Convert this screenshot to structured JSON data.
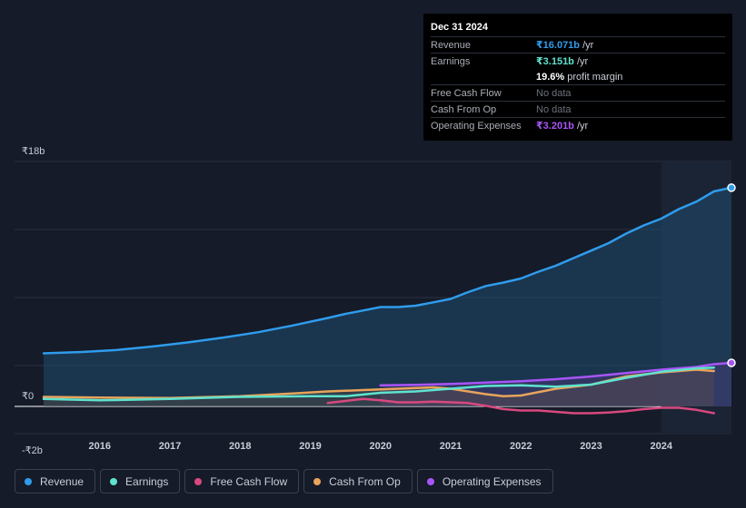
{
  "tooltip": {
    "date": "Dec 31 2024",
    "rows": [
      {
        "label": "Revenue",
        "value": "₹16.071b",
        "unit": " /yr",
        "color": "#2f9cec"
      },
      {
        "label": "Earnings",
        "value": "₹3.151b",
        "unit": " /yr",
        "color": "#5fe3cf"
      },
      {
        "label": "",
        "value": "19.6%",
        "unit": " profit margin",
        "color": "#ffffff"
      },
      {
        "label": "Free Cash Flow",
        "value": "No data",
        "unit": "",
        "color": "#6b717c"
      },
      {
        "label": "Cash From Op",
        "value": "No data",
        "unit": "",
        "color": "#6b717c"
      },
      {
        "label": "Operating Expenses",
        "value": "₹3.201b",
        "unit": " /yr",
        "color": "#a855f7"
      }
    ]
  },
  "legend": [
    {
      "label": "Revenue",
      "color": "#2f9cec"
    },
    {
      "label": "Earnings",
      "color": "#5fe3cf"
    },
    {
      "label": "Free Cash Flow",
      "color": "#d9487f"
    },
    {
      "label": "Cash From Op",
      "color": "#e8a45c"
    },
    {
      "label": "Operating Expenses",
      "color": "#a855f7"
    }
  ],
  "chart_data": {
    "type": "line",
    "title": "",
    "xlabel": "",
    "ylabel": "",
    "y_tick_labels": [
      "₹18b",
      "₹0",
      "-₹2b"
    ],
    "ylim": [
      -2,
      18
    ],
    "xlim": [
      2015.2,
      2025.0
    ],
    "x_tick_labels": [
      "2016",
      "2017",
      "2018",
      "2019",
      "2020",
      "2021",
      "2022",
      "2023",
      "2024"
    ],
    "x_ticks": [
      2016,
      2017,
      2018,
      2019,
      2020,
      2021,
      2022,
      2023,
      2024
    ],
    "highlight_start": 2024.0,
    "series": [
      {
        "name": "Revenue",
        "color": "#2f9cec",
        "fill": true,
        "end_marker": true,
        "x": [
          2015.2,
          2015.75,
          2016.25,
          2016.75,
          2017.25,
          2017.75,
          2018.25,
          2018.75,
          2019.25,
          2019.5,
          2019.75,
          2020.0,
          2020.25,
          2020.5,
          2020.75,
          2021.0,
          2021.25,
          2021.5,
          2021.75,
          2022.0,
          2022.25,
          2022.5,
          2022.75,
          2023.0,
          2023.25,
          2023.5,
          2023.75,
          2024.0,
          2024.25,
          2024.5,
          2024.75,
          2025.0
        ],
        "y": [
          3.9,
          4.0,
          4.15,
          4.4,
          4.7,
          5.05,
          5.45,
          5.95,
          6.5,
          6.8,
          7.05,
          7.3,
          7.3,
          7.4,
          7.65,
          7.9,
          8.4,
          8.85,
          9.1,
          9.4,
          9.9,
          10.35,
          10.9,
          11.45,
          12.0,
          12.7,
          13.3,
          13.8,
          14.5,
          15.05,
          15.8,
          16.071
        ]
      },
      {
        "name": "Operating Expenses",
        "color": "#a855f7",
        "fill": true,
        "end_marker": true,
        "x": [
          2020.0,
          2020.5,
          2021.0,
          2021.5,
          2022.0,
          2022.5,
          2023.0,
          2023.5,
          2024.0,
          2024.5,
          2024.75,
          2025.0
        ],
        "y": [
          1.55,
          1.58,
          1.65,
          1.75,
          1.85,
          2.0,
          2.2,
          2.45,
          2.7,
          2.9,
          3.1,
          3.201
        ]
      },
      {
        "name": "Cash From Op",
        "color": "#e8a45c",
        "fill": true,
        "end_marker": false,
        "x": [
          2015.2,
          2016.0,
          2017.0,
          2018.0,
          2018.75,
          2019.25,
          2019.75,
          2020.25,
          2020.75,
          2021.0,
          2021.25,
          2021.5,
          2021.75,
          2022.0,
          2022.5,
          2023.0,
          2023.5,
          2024.0,
          2024.5,
          2024.75
        ],
        "y": [
          0.7,
          0.65,
          0.62,
          0.75,
          0.95,
          1.1,
          1.2,
          1.3,
          1.4,
          1.3,
          1.1,
          0.9,
          0.75,
          0.8,
          1.3,
          1.6,
          2.2,
          2.5,
          2.7,
          2.6
        ]
      },
      {
        "name": "Earnings",
        "color": "#5fe3cf",
        "fill": false,
        "end_marker": false,
        "x": [
          2015.2,
          2016.0,
          2017.0,
          2018.0,
          2019.0,
          2019.5,
          2020.0,
          2020.5,
          2021.0,
          2021.5,
          2022.0,
          2022.5,
          2023.0,
          2023.5,
          2024.0,
          2024.5,
          2024.75
        ],
        "y": [
          0.55,
          0.45,
          0.55,
          0.7,
          0.75,
          0.75,
          1.0,
          1.1,
          1.3,
          1.5,
          1.55,
          1.45,
          1.6,
          2.1,
          2.55,
          2.8,
          2.85
        ]
      },
      {
        "name": "Free Cash Flow",
        "color": "#d9487f",
        "fill": false,
        "end_marker": false,
        "x": [
          2019.25,
          2019.5,
          2019.75,
          2020.0,
          2020.25,
          2020.5,
          2020.75,
          2021.0,
          2021.25,
          2021.5,
          2021.75,
          2022.0,
          2022.25,
          2022.5,
          2022.75,
          2023.0,
          2023.25,
          2023.5,
          2023.75,
          2024.0,
          2024.25,
          2024.5,
          2024.75
        ],
        "y": [
          0.25,
          0.4,
          0.55,
          0.45,
          0.3,
          0.3,
          0.35,
          0.3,
          0.25,
          0.05,
          -0.2,
          -0.3,
          -0.3,
          -0.4,
          -0.5,
          -0.5,
          -0.45,
          -0.35,
          -0.2,
          -0.1,
          -0.1,
          -0.25,
          -0.5
        ]
      }
    ]
  }
}
